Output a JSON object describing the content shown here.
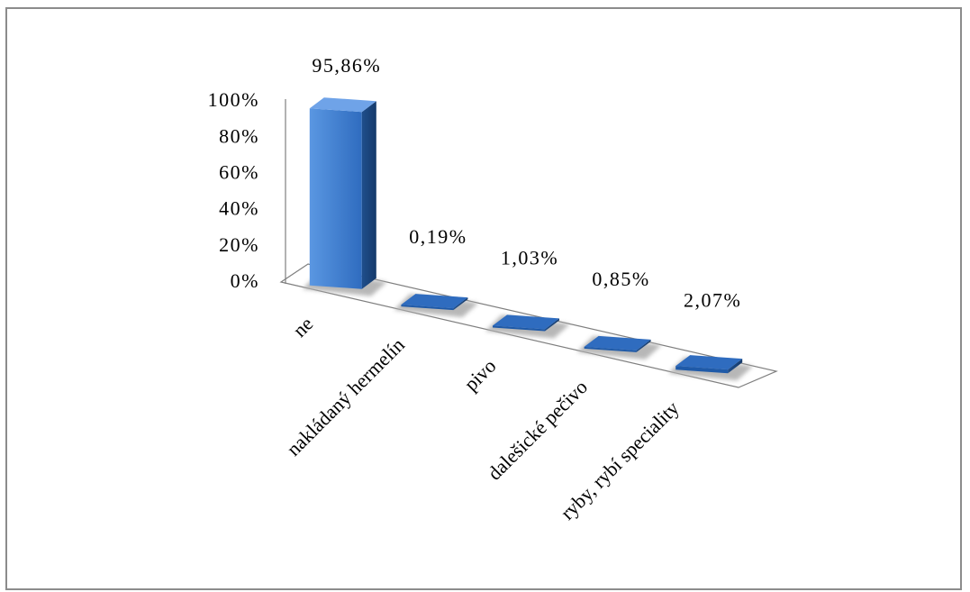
{
  "chart_data": {
    "type": "bar",
    "style": "3d-column",
    "categories": [
      "ne",
      "nakládaný hermelín",
      "pivo",
      "dalešické pečivo",
      "ryby, rybí speciality"
    ],
    "values": [
      95.86,
      0.19,
      1.03,
      0.85,
      2.07
    ],
    "data_labels": [
      "95,86%",
      "0,19%",
      "1,03%",
      "0,85%",
      "2,07%"
    ],
    "y_ticks": [
      "0%",
      "20%",
      "40%",
      "60%",
      "80%",
      "100%"
    ],
    "ylim": [
      0,
      100
    ],
    "grid": false,
    "legend": "none",
    "colors": {
      "bar_front": "#3f7fd0",
      "bar_side": "#1f4e8c",
      "bar_top": "#6fa3e8",
      "floor_edge": "#7f7f7f",
      "shadow": "#b0b0b0"
    }
  }
}
